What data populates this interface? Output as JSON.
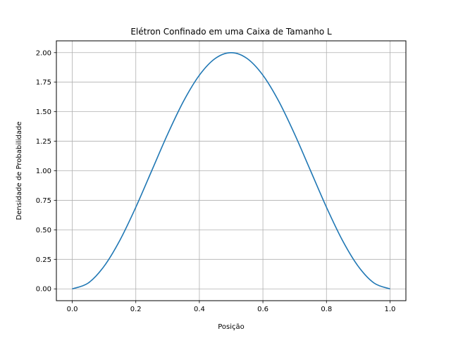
{
  "chart_data": {
    "type": "line",
    "title": "Elétron Confinado em uma Caixa de Tamanho L",
    "xlabel": "Posição",
    "ylabel": "Densidade de Probabilidade",
    "xlim": [
      -0.05,
      1.05
    ],
    "ylim": [
      -0.1,
      2.1
    ],
    "grid": true,
    "xticks": [
      0.0,
      0.2,
      0.4,
      0.6,
      0.8,
      1.0
    ],
    "xtick_labels": [
      "0.0",
      "0.2",
      "0.4",
      "0.6",
      "0.8",
      "1.0"
    ],
    "yticks": [
      0.0,
      0.25,
      0.5,
      0.75,
      1.0,
      1.25,
      1.5,
      1.75,
      2.0
    ],
    "ytick_labels": [
      "0.00",
      "0.25",
      "0.50",
      "0.75",
      "1.00",
      "1.25",
      "1.50",
      "1.75",
      "2.00"
    ],
    "series": [
      {
        "color": "#1f77b4",
        "x": [
          0.0,
          0.05,
          0.1,
          0.15,
          0.2,
          0.25,
          0.3,
          0.35,
          0.4,
          0.45,
          0.5,
          0.55,
          0.6,
          0.65,
          0.7,
          0.75,
          0.8,
          0.85,
          0.9,
          0.95,
          1.0
        ],
        "y": [
          0.0,
          0.049,
          0.191,
          0.412,
          0.691,
          1.0,
          1.309,
          1.588,
          1.809,
          1.951,
          2.0,
          1.951,
          1.809,
          1.588,
          1.309,
          1.0,
          0.691,
          0.412,
          0.191,
          0.049,
          0.0
        ]
      }
    ]
  }
}
